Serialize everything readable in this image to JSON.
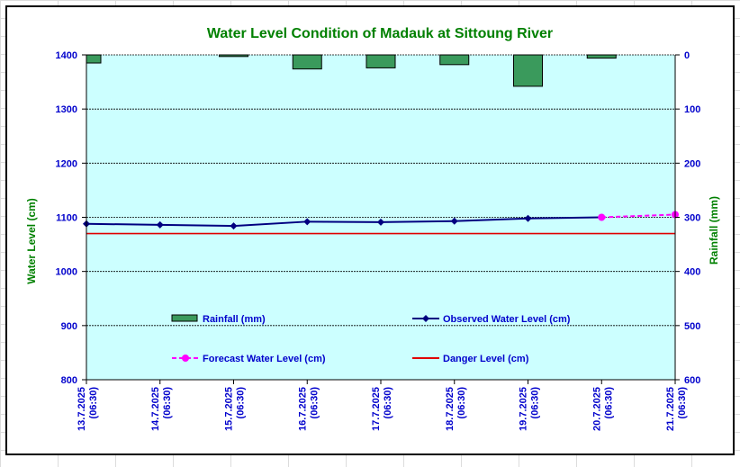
{
  "chart_data": {
    "type": "line",
    "title": "Water Level Condition of Madauk at Sittoung River",
    "ylabel": "Water Level (cm)",
    "y2label": "Rainfall (mm)",
    "ylim": [
      800,
      1400
    ],
    "y_ticks": [
      800,
      900,
      1000,
      1100,
      1200,
      1300,
      1400
    ],
    "y2lim": [
      600,
      0
    ],
    "y2_ticks": [
      600,
      500,
      400,
      300,
      200,
      100,
      0
    ],
    "y2_inverted": true,
    "categories": [
      [
        "13.7.2025",
        "(06:30)"
      ],
      [
        "14.7.2025",
        "(06:30)"
      ],
      [
        "15.7.2025",
        "(06:30)"
      ],
      [
        "16.7.2025",
        "(06:30)"
      ],
      [
        "17.7.2025",
        "(06:30)"
      ],
      [
        "18.7.2025",
        "(06:30)"
      ],
      [
        "19.7.2025",
        "(06:30)"
      ],
      [
        "20.7.2025",
        "(06:30)"
      ],
      [
        "21.7.2025",
        "(06:30)"
      ]
    ],
    "series": [
      {
        "name": "Rainfall (mm)",
        "type": "bar",
        "axis": "right",
        "color": "#3a9a5c",
        "values": [
          15,
          0,
          3,
          26,
          24,
          18,
          58,
          6,
          0
        ]
      },
      {
        "name": "Observed Water Level (cm)",
        "type": "line",
        "axis": "left",
        "color": "#000080",
        "marker": "diamond",
        "values": [
          1088,
          1086,
          1084,
          1092,
          1091,
          1093,
          1098,
          1100,
          null
        ]
      },
      {
        "name": "Forecast Water Level (cm)",
        "type": "line",
        "axis": "left",
        "color": "#ff00ff",
        "marker": "circle",
        "dashed": true,
        "values": [
          null,
          null,
          null,
          null,
          null,
          null,
          null,
          1100,
          1105
        ]
      },
      {
        "name": "Danger Level (cm)",
        "type": "line",
        "axis": "left",
        "color": "#e00000",
        "values": [
          1070,
          1070,
          1070,
          1070,
          1070,
          1070,
          1070,
          1070,
          1070
        ]
      }
    ],
    "plot_background": "#ccffff",
    "grid": true,
    "legend_position": "inside-bottom"
  }
}
